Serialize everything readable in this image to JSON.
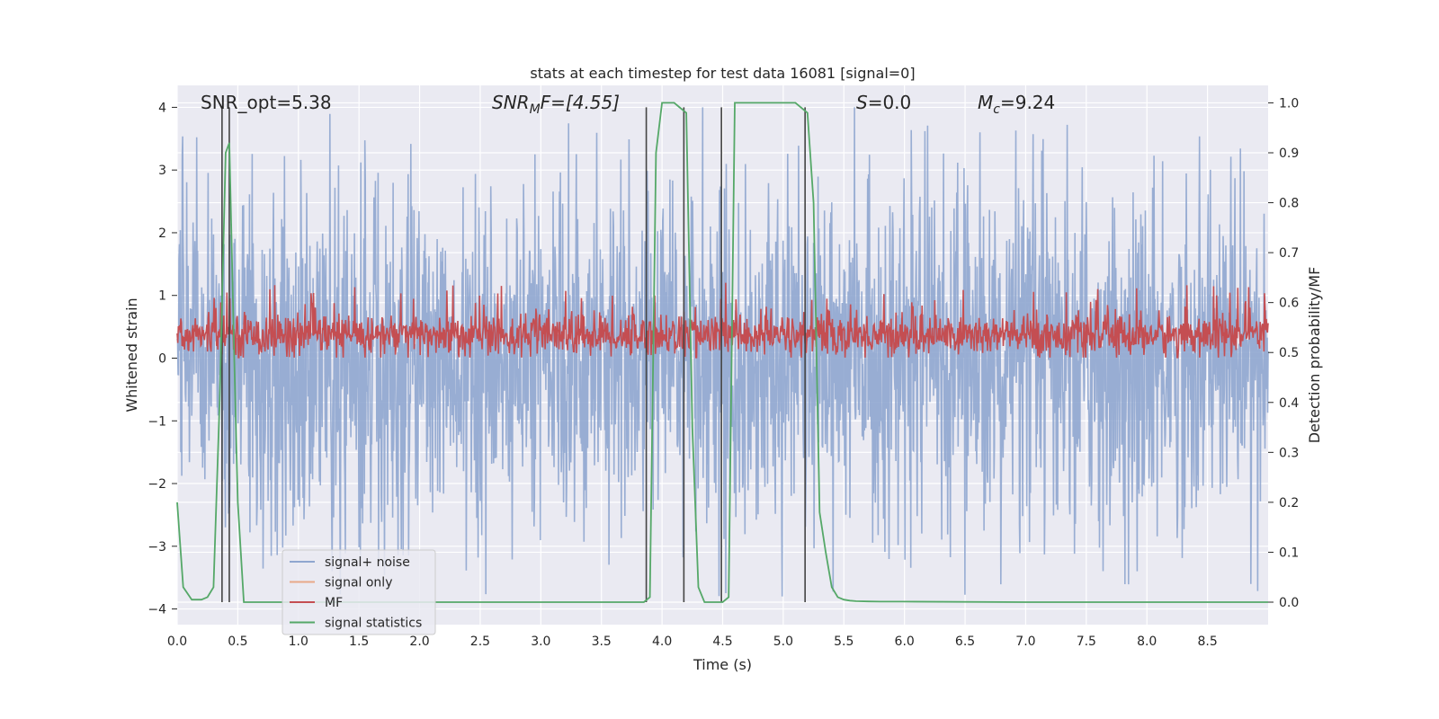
{
  "chart_data": {
    "type": "line",
    "title": "stats at each timestep for test data 16081 [signal=0]",
    "xlabel": "Time (s)",
    "ylabel": "Whitened strain",
    "ylabel_right": "Detection probability/MF",
    "xlim": [
      0.0,
      9.0
    ],
    "ylim": [
      -4.25,
      4.35
    ],
    "ylim_right": [
      -0.045,
      1.035
    ],
    "x_ticks": [
      "0.0",
      "0.5",
      "1.0",
      "1.5",
      "2.0",
      "2.5",
      "3.0",
      "3.5",
      "4.0",
      "4.5",
      "5.0",
      "5.5",
      "6.0",
      "6.5",
      "7.0",
      "7.5",
      "8.0",
      "8.5"
    ],
    "y_ticks": [
      "4",
      "3",
      "2",
      "1",
      "0",
      "−1",
      "−2",
      "−3",
      "−4"
    ],
    "y_ticks_right": [
      "1.0",
      "0.9",
      "0.8",
      "0.7",
      "0.6",
      "0.5",
      "0.4",
      "0.3",
      "0.2",
      "0.1",
      "0.0"
    ],
    "grid": true,
    "legend_position": "lower-left",
    "annotations": {
      "snr_opt": "SNR_opt=5.38",
      "snr_mf_base": "SNR",
      "snr_mf_sub": "M",
      "snr_mf_rest": "F=[4.55]",
      "s_italic": "S",
      "s_rest": "=0.0",
      "mc_base": "M",
      "mc_sub": "c",
      "mc_rest": "=9.24"
    },
    "series": [
      {
        "name": "signal+ noise",
        "color": "#8fa6cf",
        "kind": "noise",
        "axis": "left",
        "approx_range": [
          -3.8,
          4.0
        ]
      },
      {
        "name": "signal only",
        "color": "#e8a888",
        "kind": "flat",
        "axis": "left",
        "values": []
      },
      {
        "name": "MF",
        "color": "#c44e52",
        "kind": "noise",
        "axis": "right",
        "approx_range": [
          0.49,
          0.64
        ]
      },
      {
        "name": "signal statistics",
        "color": "#55a868",
        "kind": "line",
        "axis": "right",
        "x": [
          0.0,
          0.05,
          0.12,
          0.2,
          0.25,
          0.3,
          0.35,
          0.4,
          0.43,
          0.47,
          0.5,
          0.55,
          0.6,
          1.0,
          2.0,
          3.0,
          3.5,
          3.85,
          3.9,
          3.95,
          4.0,
          4.05,
          4.1,
          4.15,
          4.2,
          4.25,
          4.3,
          4.35,
          4.45,
          4.5,
          4.55,
          4.6,
          4.7,
          4.8,
          4.9,
          5.0,
          5.1,
          5.15,
          5.2,
          5.25,
          5.3,
          5.35,
          5.4,
          5.45,
          5.5,
          5.55,
          5.6,
          5.7,
          5.8,
          6.0,
          7.0,
          8.0,
          9.0
        ],
        "y": [
          0.2,
          0.03,
          0.005,
          0.005,
          0.01,
          0.03,
          0.4,
          0.9,
          0.92,
          0.5,
          0.2,
          0.0,
          0.0,
          0.0,
          0.0,
          0.0,
          0.0,
          0.0,
          0.01,
          0.9,
          1.0,
          1.0,
          1.0,
          0.99,
          0.98,
          0.35,
          0.03,
          0.0,
          0.0,
          0.0,
          0.01,
          1.0,
          1.0,
          1.0,
          1.0,
          1.0,
          1.0,
          0.99,
          0.98,
          0.8,
          0.18,
          0.1,
          0.03,
          0.01,
          0.005,
          0.003,
          0.002,
          0.0015,
          0.001,
          0.001,
          0.0,
          0.0,
          0.0
        ]
      }
    ],
    "vertical_markers": [
      {
        "x": 0.37
      },
      {
        "x": 0.43
      },
      {
        "x": 3.87
      },
      {
        "x": 4.18
      },
      {
        "x": 4.49
      },
      {
        "x": 5.18
      }
    ]
  }
}
